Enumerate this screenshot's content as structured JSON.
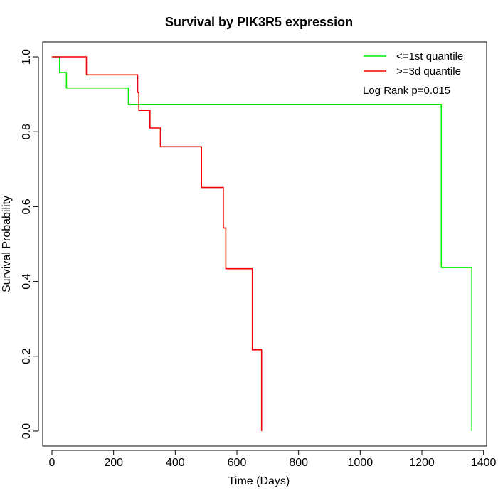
{
  "chart_data": {
    "type": "line",
    "title": "Survival by PIK3R5 expression",
    "xlabel": "Time (Days)",
    "ylabel": "Survival Probability",
    "xlim": [
      -30,
      1410
    ],
    "ylim": [
      -0.04,
      1.04
    ],
    "xticks": [
      0,
      200,
      400,
      600,
      800,
      1000,
      1200,
      1400
    ],
    "yticks": [
      0.0,
      0.2,
      0.4,
      0.6,
      0.8,
      1.0
    ],
    "xtick_labels": [
      "0",
      "200",
      "400",
      "600",
      "800",
      "1000",
      "1200",
      "1400"
    ],
    "ytick_labels": [
      "0.0",
      "0.2",
      "0.4",
      "0.6",
      "0.8",
      "1.0"
    ],
    "grid": false,
    "legend_position": "top-right",
    "annotation": "Log Rank p=0.015",
    "series": [
      {
        "name": "<=1st quantile",
        "color": "#00ee00",
        "x": [
          0,
          25,
          25,
          47,
          47,
          248,
          248,
          1263,
          1263,
          1362,
          1362
        ],
        "y": [
          1.0,
          1.0,
          0.958,
          0.958,
          0.917,
          0.917,
          0.873,
          0.873,
          0.437,
          0.437,
          0.0
        ]
      },
      {
        "name": ">=3d quantile",
        "color": "#ee0000",
        "x": [
          0,
          112,
          112,
          278,
          278,
          282,
          282,
          318,
          318,
          352,
          352,
          485,
          485,
          556,
          556,
          564,
          564,
          650,
          650,
          680,
          680
        ],
        "y": [
          1.0,
          1.0,
          0.952,
          0.952,
          0.905,
          0.905,
          0.857,
          0.857,
          0.81,
          0.81,
          0.76,
          0.76,
          0.651,
          0.651,
          0.543,
          0.543,
          0.434,
          0.434,
          0.217,
          0.217,
          0.0
        ]
      }
    ]
  }
}
